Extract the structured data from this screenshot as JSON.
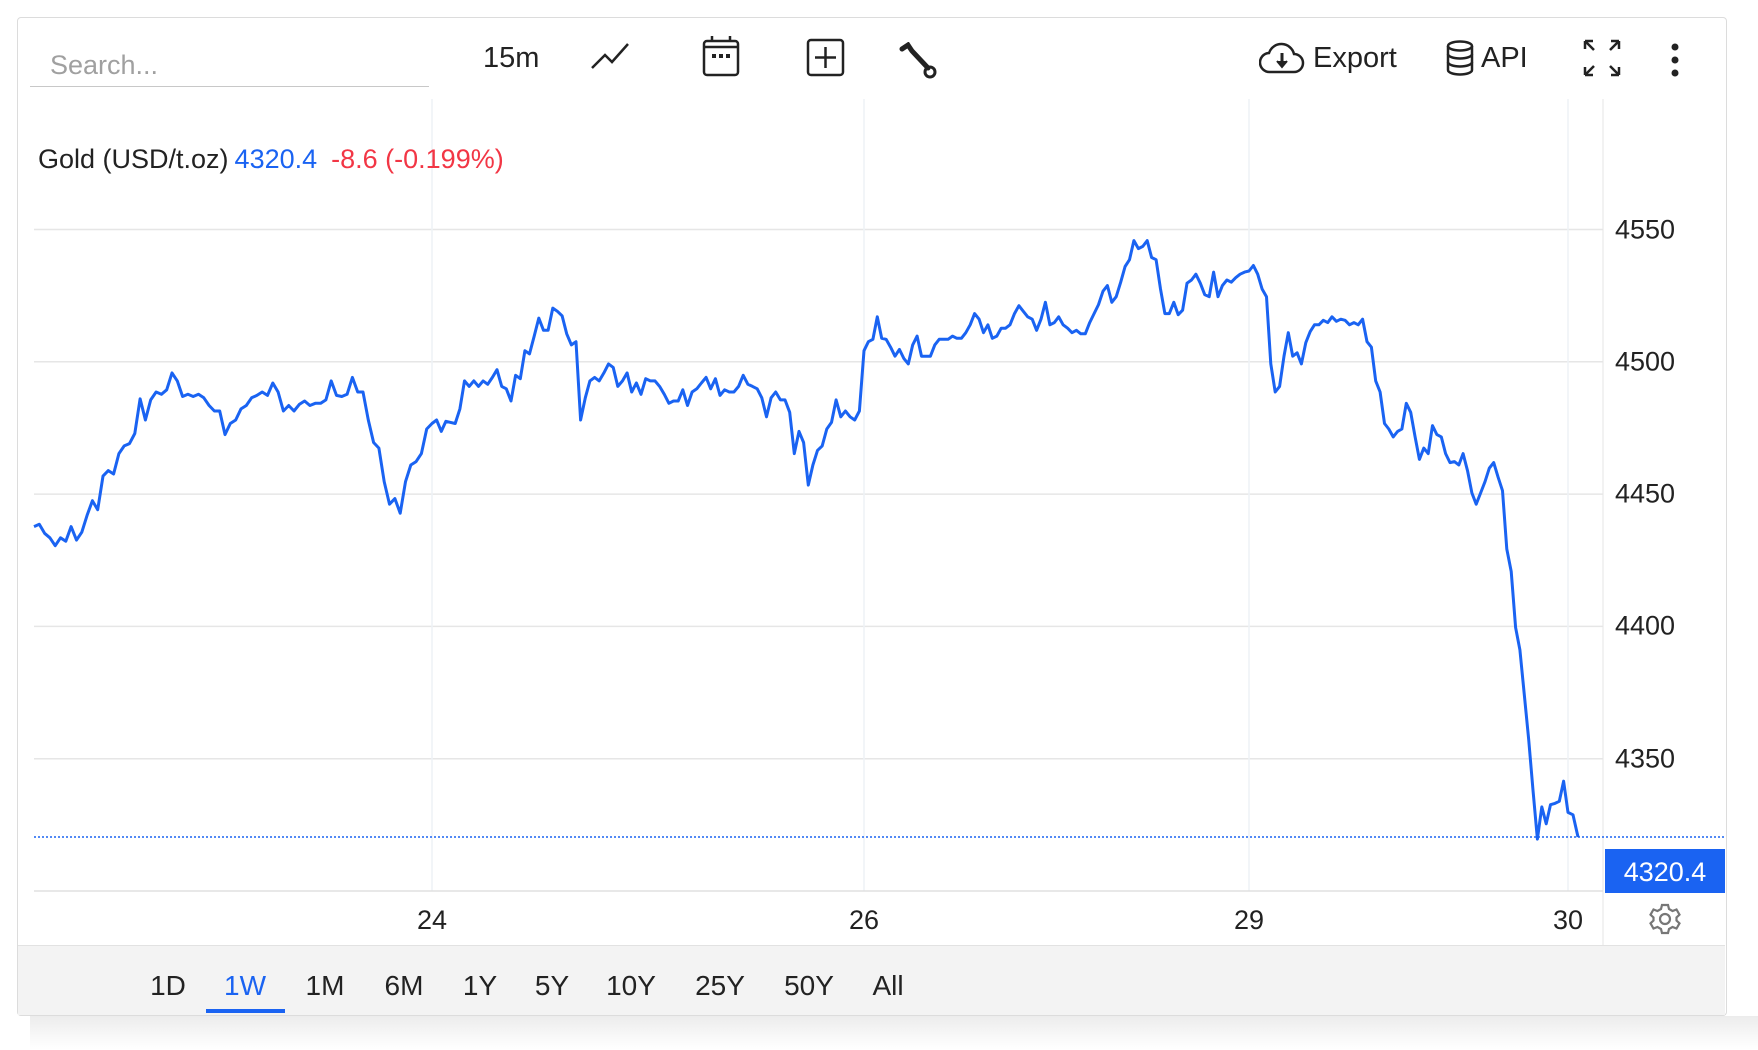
{
  "toolbar": {
    "search_placeholder": "Search...",
    "interval": "15m",
    "export_label": "Export",
    "api_label": "API",
    "icons": [
      "line-chart-icon",
      "calendar-icon",
      "add-box-icon",
      "wrench-icon",
      "cloud-download-icon",
      "database-icon",
      "fullscreen-icon",
      "more-vertical-icon"
    ]
  },
  "legend": {
    "symbol": "Gold (USD/t.oz)",
    "price": "4320.4",
    "change": "-8.6 (-0.199%)"
  },
  "colors": {
    "line": "#1a63f2",
    "negative": "#f23645",
    "grid": "#e6e6e6"
  },
  "price_label": "4320.4",
  "ranges": [
    {
      "label": "1D",
      "active": false
    },
    {
      "label": "1W",
      "active": true
    },
    {
      "label": "1M",
      "active": false
    },
    {
      "label": "6M",
      "active": false
    },
    {
      "label": "1Y",
      "active": false
    },
    {
      "label": "5Y",
      "active": false
    },
    {
      "label": "10Y",
      "active": false
    },
    {
      "label": "25Y",
      "active": false
    },
    {
      "label": "50Y",
      "active": false
    },
    {
      "label": "All",
      "active": false
    }
  ],
  "chart_data": {
    "type": "line",
    "title": "Gold (USD/t.oz)",
    "interval": "15m",
    "ylim": [
      4300,
      4590
    ],
    "y_ticks": [
      4550,
      4500,
      4450,
      4400,
      4350
    ],
    "x_ticks": [
      {
        "label": "24",
        "index": 75
      },
      {
        "label": "26",
        "index": 168
      },
      {
        "label": "29",
        "index": 255
      },
      {
        "label": "30",
        "index": 328
      }
    ],
    "last_value": 4320.4,
    "grid": true,
    "y_axis_side": "right",
    "values": [
      4437.7,
      4438.6,
      4435.2,
      4433.5,
      4430.5,
      4433.5,
      4432.2,
      4437.7,
      4432.6,
      4435.6,
      4442.0,
      4447.5,
      4444.1,
      4456.8,
      4458.9,
      4457.6,
      4465.3,
      4468.2,
      4469.1,
      4472.9,
      4486.0,
      4478.0,
      4485.6,
      4488.6,
      4487.7,
      4489.4,
      4495.8,
      4492.8,
      4486.9,
      4487.7,
      4486.9,
      4487.7,
      4486.4,
      4483.5,
      4481.4,
      4481.4,
      4472.5,
      4476.7,
      4478.0,
      4482.2,
      4483.5,
      4486.4,
      4487.3,
      4488.6,
      4487.3,
      4492.0,
      4488.6,
      4481.4,
      4483.5,
      4481.4,
      4483.9,
      4485.2,
      4483.5,
      4484.3,
      4484.3,
      4485.6,
      4492.8,
      4487.3,
      4486.9,
      4487.7,
      4494.1,
      4488.6,
      4488.6,
      4478.0,
      4469.5,
      4467.4,
      4454.7,
      4446.2,
      4448.3,
      4442.8,
      4454.7,
      4461.0,
      4462.3,
      4465.3,
      4474.6,
      4476.7,
      4478.0,
      4473.7,
      4477.5,
      4477.1,
      4476.7,
      4482.2,
      4492.8,
      4490.7,
      4492.8,
      4490.7,
      4492.8,
      4491.5,
      4494.1,
      4497.0,
      4490.7,
      4489.8,
      4485.2,
      4494.9,
      4493.6,
      4504.2,
      4503.0,
      4509.7,
      4516.5,
      4511.9,
      4511.9,
      4520.3,
      4519.1,
      4517.4,
      4510.6,
      4506.4,
      4507.6,
      4478.0,
      4486.4,
      4492.8,
      4494.1,
      4492.8,
      4495.8,
      4499.2,
      4497.9,
      4490.7,
      4492.8,
      4495.8,
      4488.6,
      4492.0,
      4487.7,
      4493.6,
      4492.8,
      4492.8,
      4490.7,
      4487.7,
      4484.3,
      4485.2,
      4485.2,
      4489.4,
      4483.5,
      4488.6,
      4489.8,
      4492.0,
      4494.1,
      4489.8,
      4493.6,
      4487.3,
      4489.4,
      4488.6,
      4488.6,
      4490.7,
      4494.9,
      4491.5,
      4490.7,
      4489.8,
      4486.4,
      4479.2,
      4486.4,
      4488.6,
      4485.6,
      4485.6,
      4480.9,
      4465.3,
      4473.7,
      4469.5,
      4453.4,
      4461.0,
      4466.5,
      4468.2,
      4474.6,
      4477.1,
      4485.6,
      4479.2,
      4481.4,
      4479.2,
      4478.0,
      4481.4,
      4504.2,
      4507.6,
      4508.5,
      4517.0,
      4508.9,
      4508.5,
      4505.5,
      4502.1,
      4504.7,
      4501.3,
      4499.2,
      4506.4,
      4509.7,
      4502.1,
      4502.1,
      4502.1,
      4506.4,
      4508.5,
      4508.5,
      4508.5,
      4509.7,
      4508.9,
      4508.9,
      4511.0,
      4514.0,
      4518.2,
      4516.1,
      4511.0,
      4514.0,
      4508.9,
      4509.7,
      4512.7,
      4512.7,
      4514.0,
      4518.2,
      4521.2,
      4519.1,
      4517.0,
      4516.1,
      4511.9,
      4516.1,
      4522.5,
      4514.0,
      4514.8,
      4517.0,
      4514.0,
      4512.7,
      4511.0,
      4511.9,
      4510.6,
      4510.6,
      4514.8,
      4518.2,
      4521.6,
      4526.7,
      4528.8,
      4522.5,
      4524.6,
      4530.1,
      4536.0,
      4538.6,
      4545.8,
      4542.8,
      4543.6,
      4545.8,
      4539.4,
      4538.6,
      4527.5,
      4518.2,
      4518.2,
      4522.5,
      4517.8,
      4519.5,
      4529.7,
      4530.9,
      4533.1,
      4529.7,
      4525.4,
      4524.6,
      4533.9,
      4524.6,
      4528.8,
      4530.9,
      4530.1,
      4531.8,
      4533.1,
      4533.9,
      4534.3,
      4536.4,
      4533.1,
      4527.5,
      4524.6,
      4499.2,
      4488.6,
      4490.7,
      4502.1,
      4511.0,
      4502.1,
      4503.4,
      4499.2,
      4507.2,
      4511.4,
      4514.0,
      4514.0,
      4515.7,
      4514.8,
      4517.0,
      4515.3,
      4516.1,
      4515.7,
      4514.0,
      4514.8,
      4514.0,
      4516.1,
      4507.6,
      4505.5,
      4492.8,
      4488.6,
      4476.7,
      4474.6,
      4471.6,
      4473.7,
      4474.6,
      4484.3,
      4480.9,
      4471.6,
      4463.1,
      4467.4,
      4465.3,
      4475.9,
      4472.5,
      4471.6,
      4465.3,
      4461.9,
      4462.3,
      4461.0,
      4465.3,
      4458.9,
      4450.4,
      4446.2,
      4450.4,
      4454.7,
      4459.8,
      4461.9,
      4456.4,
      4451.3,
      4429.2,
      4420.8,
      4399.6,
      4391.1,
      4374.2,
      4357.2,
      4338.1,
      4319.6,
      4331.8,
      4325.4,
      4332.6,
      4333.1,
      4333.9,
      4341.5,
      4329.7,
      4328.8,
      4320.4
    ]
  }
}
